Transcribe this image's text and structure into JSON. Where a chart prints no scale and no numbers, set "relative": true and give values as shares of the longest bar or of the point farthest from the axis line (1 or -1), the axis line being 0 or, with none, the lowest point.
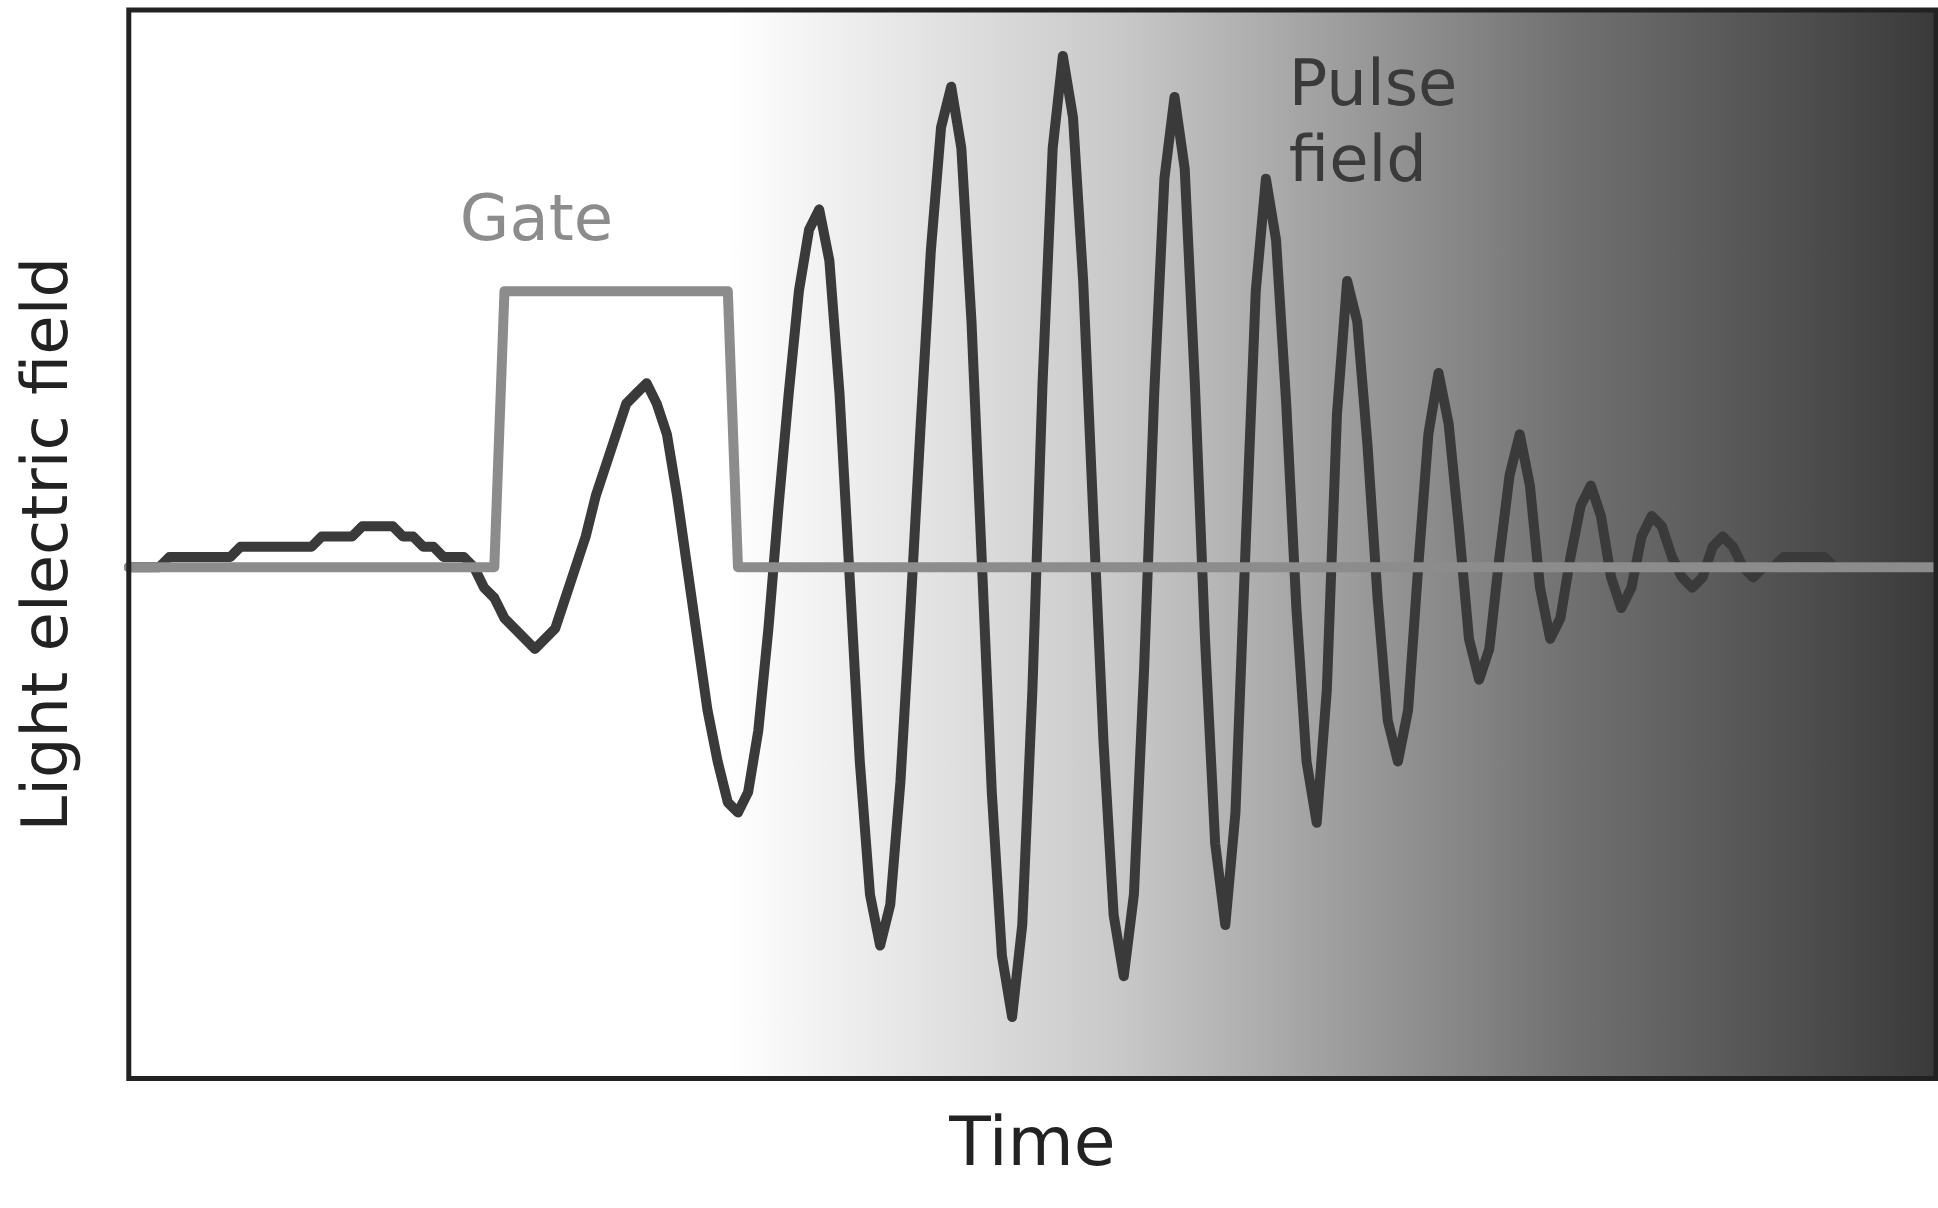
{
  "chart_data": {
    "type": "line",
    "xlabel": "Time",
    "ylabel": "Light electric field",
    "relative": true,
    "grid": false,
    "legend": false,
    "marker": "none",
    "line_style": "solid",
    "categories": [
      null,
      null,
      null,
      null,
      null,
      null,
      null,
      null,
      null,
      null,
      null,
      null,
      null,
      null,
      null,
      null,
      null,
      null,
      null,
      null,
      null,
      null,
      null,
      null,
      null,
      null,
      null,
      null,
      null,
      null,
      null,
      null,
      null,
      null,
      null,
      null,
      null,
      null,
      null,
      null,
      null,
      null,
      null,
      null,
      null,
      null,
      null,
      null,
      null,
      null,
      null,
      null,
      null,
      null,
      null,
      null,
      null,
      null,
      null,
      null,
      null,
      null,
      null,
      null,
      null,
      null,
      null,
      null,
      null,
      null,
      null,
      null,
      null,
      null,
      null,
      null,
      null,
      null,
      null,
      null,
      null,
      null,
      null,
      null,
      null,
      null,
      null,
      null,
      null,
      null,
      null,
      null,
      null,
      null,
      null,
      null,
      null,
      null,
      null,
      null,
      null,
      null,
      null,
      null,
      null,
      null,
      null,
      null,
      null,
      null,
      null,
      null,
      null,
      null,
      null,
      null,
      null,
      null,
      null,
      null,
      null,
      null,
      null,
      null,
      null,
      null,
      null,
      null,
      null,
      null,
      null,
      null,
      null,
      null,
      null,
      null,
      null,
      null,
      null,
      null,
      null,
      null,
      null,
      null,
      null,
      null,
      null,
      null,
      null,
      null,
      null,
      null,
      null,
      null,
      null,
      null,
      null,
      null,
      null,
      null,
      null,
      null,
      null,
      null,
      null,
      null,
      null,
      null,
      null,
      null,
      null,
      null,
      null,
      null,
      null,
      null,
      null,
      null,
      null
    ],
    "series": [
      {
        "name": "Gate",
        "color": "#8c8c8c",
        "values": [
          0.5,
          0.5,
          0.5,
          0.5,
          0.5,
          0.5,
          0.5,
          0.5,
          0.5,
          0.5,
          0.5,
          0.5,
          0.5,
          0.5,
          0.5,
          0.5,
          0.5,
          0.5,
          0.5,
          0.5,
          0.5,
          0.5,
          0.5,
          0.5,
          0.5,
          0.5,
          0.5,
          0.5,
          0.5,
          0.5,
          0.5,
          0.5,
          0.5,
          0.5,
          0.5,
          0.5,
          0.5,
          0.77,
          0.77,
          0.77,
          0.77,
          0.77,
          0.77,
          0.77,
          0.77,
          0.77,
          0.77,
          0.77,
          0.77,
          0.77,
          0.77,
          0.77,
          0.77,
          0.77,
          0.77,
          0.77,
          0.77,
          0.77,
          0.77,
          0.77,
          0.5,
          0.5,
          0.5,
          0.5,
          0.5,
          0.5,
          0.5,
          0.5,
          0.5,
          0.5,
          0.5,
          0.5,
          0.5,
          0.5,
          0.5,
          0.5,
          0.5,
          0.5,
          0.5,
          0.5,
          0.5,
          0.5,
          0.5,
          0.5,
          0.5,
          0.5,
          0.5,
          0.5,
          0.5,
          0.5,
          0.5,
          0.5,
          0.5,
          0.5,
          0.5,
          0.5,
          0.5,
          0.5,
          0.5,
          0.5,
          0.5,
          0.5,
          0.5,
          0.5,
          0.5,
          0.5,
          0.5,
          0.5,
          0.5,
          0.5,
          0.5,
          0.5,
          0.5,
          0.5,
          0.5,
          0.5,
          0.5,
          0.5,
          0.5,
          0.5,
          0.5,
          0.5,
          0.5,
          0.5,
          0.5,
          0.5,
          0.5,
          0.5,
          0.5,
          0.5,
          0.5,
          0.5,
          0.5,
          0.5,
          0.5,
          0.5,
          0.5,
          0.5,
          0.5,
          0.5,
          0.5,
          0.5,
          0.5,
          0.5,
          0.5,
          0.5,
          0.5,
          0.5,
          0.5,
          0.5,
          0.5,
          0.5,
          0.5,
          0.5,
          0.5,
          0.5,
          0.5,
          0.5,
          0.5,
          0.5,
          0.5,
          0.5,
          0.5,
          0.5,
          0.5,
          0.5,
          0.5,
          0.5,
          0.5,
          0.5,
          0.5,
          0.5,
          0.5,
          0.5,
          0.5,
          0.5,
          0.5,
          0.5,
          0.5
        ]
      },
      {
        "name": "Pulse field",
        "color": "#3a3a3a",
        "values": [
          0.5,
          0.5,
          0.5,
          0.5,
          0.51,
          0.51,
          0.51,
          0.51,
          0.51,
          0.51,
          0.51,
          0.52,
          0.52,
          0.52,
          0.52,
          0.52,
          0.52,
          0.52,
          0.52,
          0.53,
          0.53,
          0.53,
          0.53,
          0.54,
          0.54,
          0.54,
          0.54,
          0.53,
          0.53,
          0.52,
          0.52,
          0.51,
          0.51,
          0.51,
          0.5,
          0.48,
          0.47,
          0.45,
          0.44,
          0.43,
          0.42,
          0.43,
          0.44,
          0.47,
          0.5,
          0.53,
          0.57,
          0.6,
          0.63,
          0.66,
          0.67,
          0.68,
          0.66,
          0.63,
          0.57,
          0.5,
          0.43,
          0.36,
          0.31,
          0.27,
          0.26,
          0.28,
          0.34,
          0.44,
          0.56,
          0.67,
          0.77,
          0.83,
          0.85,
          0.8,
          0.67,
          0.49,
          0.31,
          0.18,
          0.13,
          0.17,
          0.29,
          0.46,
          0.64,
          0.81,
          0.93,
          0.97,
          0.91,
          0.74,
          0.51,
          0.28,
          0.12,
          0.06,
          0.15,
          0.38,
          0.68,
          0.91,
          1,
          0.94,
          0.78,
          0.55,
          0.33,
          0.16,
          0.1,
          0.18,
          0.4,
          0.67,
          0.88,
          0.96,
          0.89,
          0.68,
          0.43,
          0.23,
          0.15,
          0.26,
          0.52,
          0.77,
          0.88,
          0.82,
          0.66,
          0.46,
          0.31,
          0.25,
          0.38,
          0.65,
          0.78,
          0.74,
          0.62,
          0.47,
          0.35,
          0.31,
          0.36,
          0.5,
          0.63,
          0.69,
          0.64,
          0.54,
          0.43,
          0.39,
          0.42,
          0.51,
          0.59,
          0.63,
          0.58,
          0.48,
          0.43,
          0.45,
          0.51,
          0.56,
          0.58,
          0.55,
          0.49,
          0.46,
          0.48,
          0.53,
          0.55,
          0.54,
          0.51,
          0.49,
          0.48,
          0.49,
          0.52,
          0.53,
          0.52,
          0.5,
          0.49,
          0.5,
          0.5,
          0.51,
          0.51,
          0.51,
          0.51,
          0.51,
          0.5,
          0.5,
          0.5,
          0.5,
          0.5,
          0.5,
          0.5,
          0.5,
          0.5,
          0.5,
          0.5
        ]
      }
    ]
  }
}
